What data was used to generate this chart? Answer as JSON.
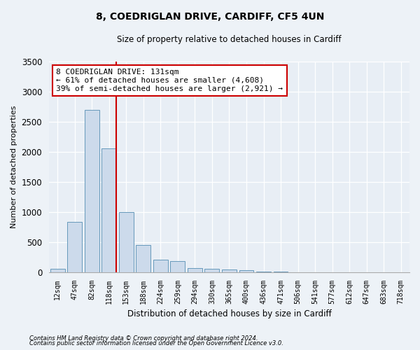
{
  "title1": "8, COEDRIGLAN DRIVE, CARDIFF, CF5 4UN",
  "title2": "Size of property relative to detached houses in Cardiff",
  "xlabel": "Distribution of detached houses by size in Cardiff",
  "ylabel": "Number of detached properties",
  "categories": [
    "12sqm",
    "47sqm",
    "82sqm",
    "118sqm",
    "153sqm",
    "188sqm",
    "224sqm",
    "259sqm",
    "294sqm",
    "330sqm",
    "365sqm",
    "400sqm",
    "436sqm",
    "471sqm",
    "506sqm",
    "541sqm",
    "577sqm",
    "612sqm",
    "647sqm",
    "683sqm",
    "718sqm"
  ],
  "values": [
    60,
    830,
    2700,
    2050,
    1000,
    450,
    200,
    185,
    70,
    50,
    40,
    30,
    10,
    10,
    0,
    0,
    0,
    0,
    0,
    0,
    0
  ],
  "bar_color": "#ccdaeb",
  "bar_edge_color": "#6699bb",
  "vline_color": "#cc0000",
  "annotation_text": "8 COEDRIGLAN DRIVE: 131sqm\n← 61% of detached houses are smaller (4,608)\n39% of semi-detached houses are larger (2,921) →",
  "annotation_box_color": "white",
  "annotation_box_edge": "#cc0000",
  "ylim": [
    0,
    3500
  ],
  "yticks": [
    0,
    500,
    1000,
    1500,
    2000,
    2500,
    3000,
    3500
  ],
  "footnote1": "Contains HM Land Registry data © Crown copyright and database right 2024.",
  "footnote2": "Contains public sector information licensed under the Open Government Licence v3.0.",
  "bg_color": "#edf2f7",
  "plot_bg_color": "#e8eef5"
}
